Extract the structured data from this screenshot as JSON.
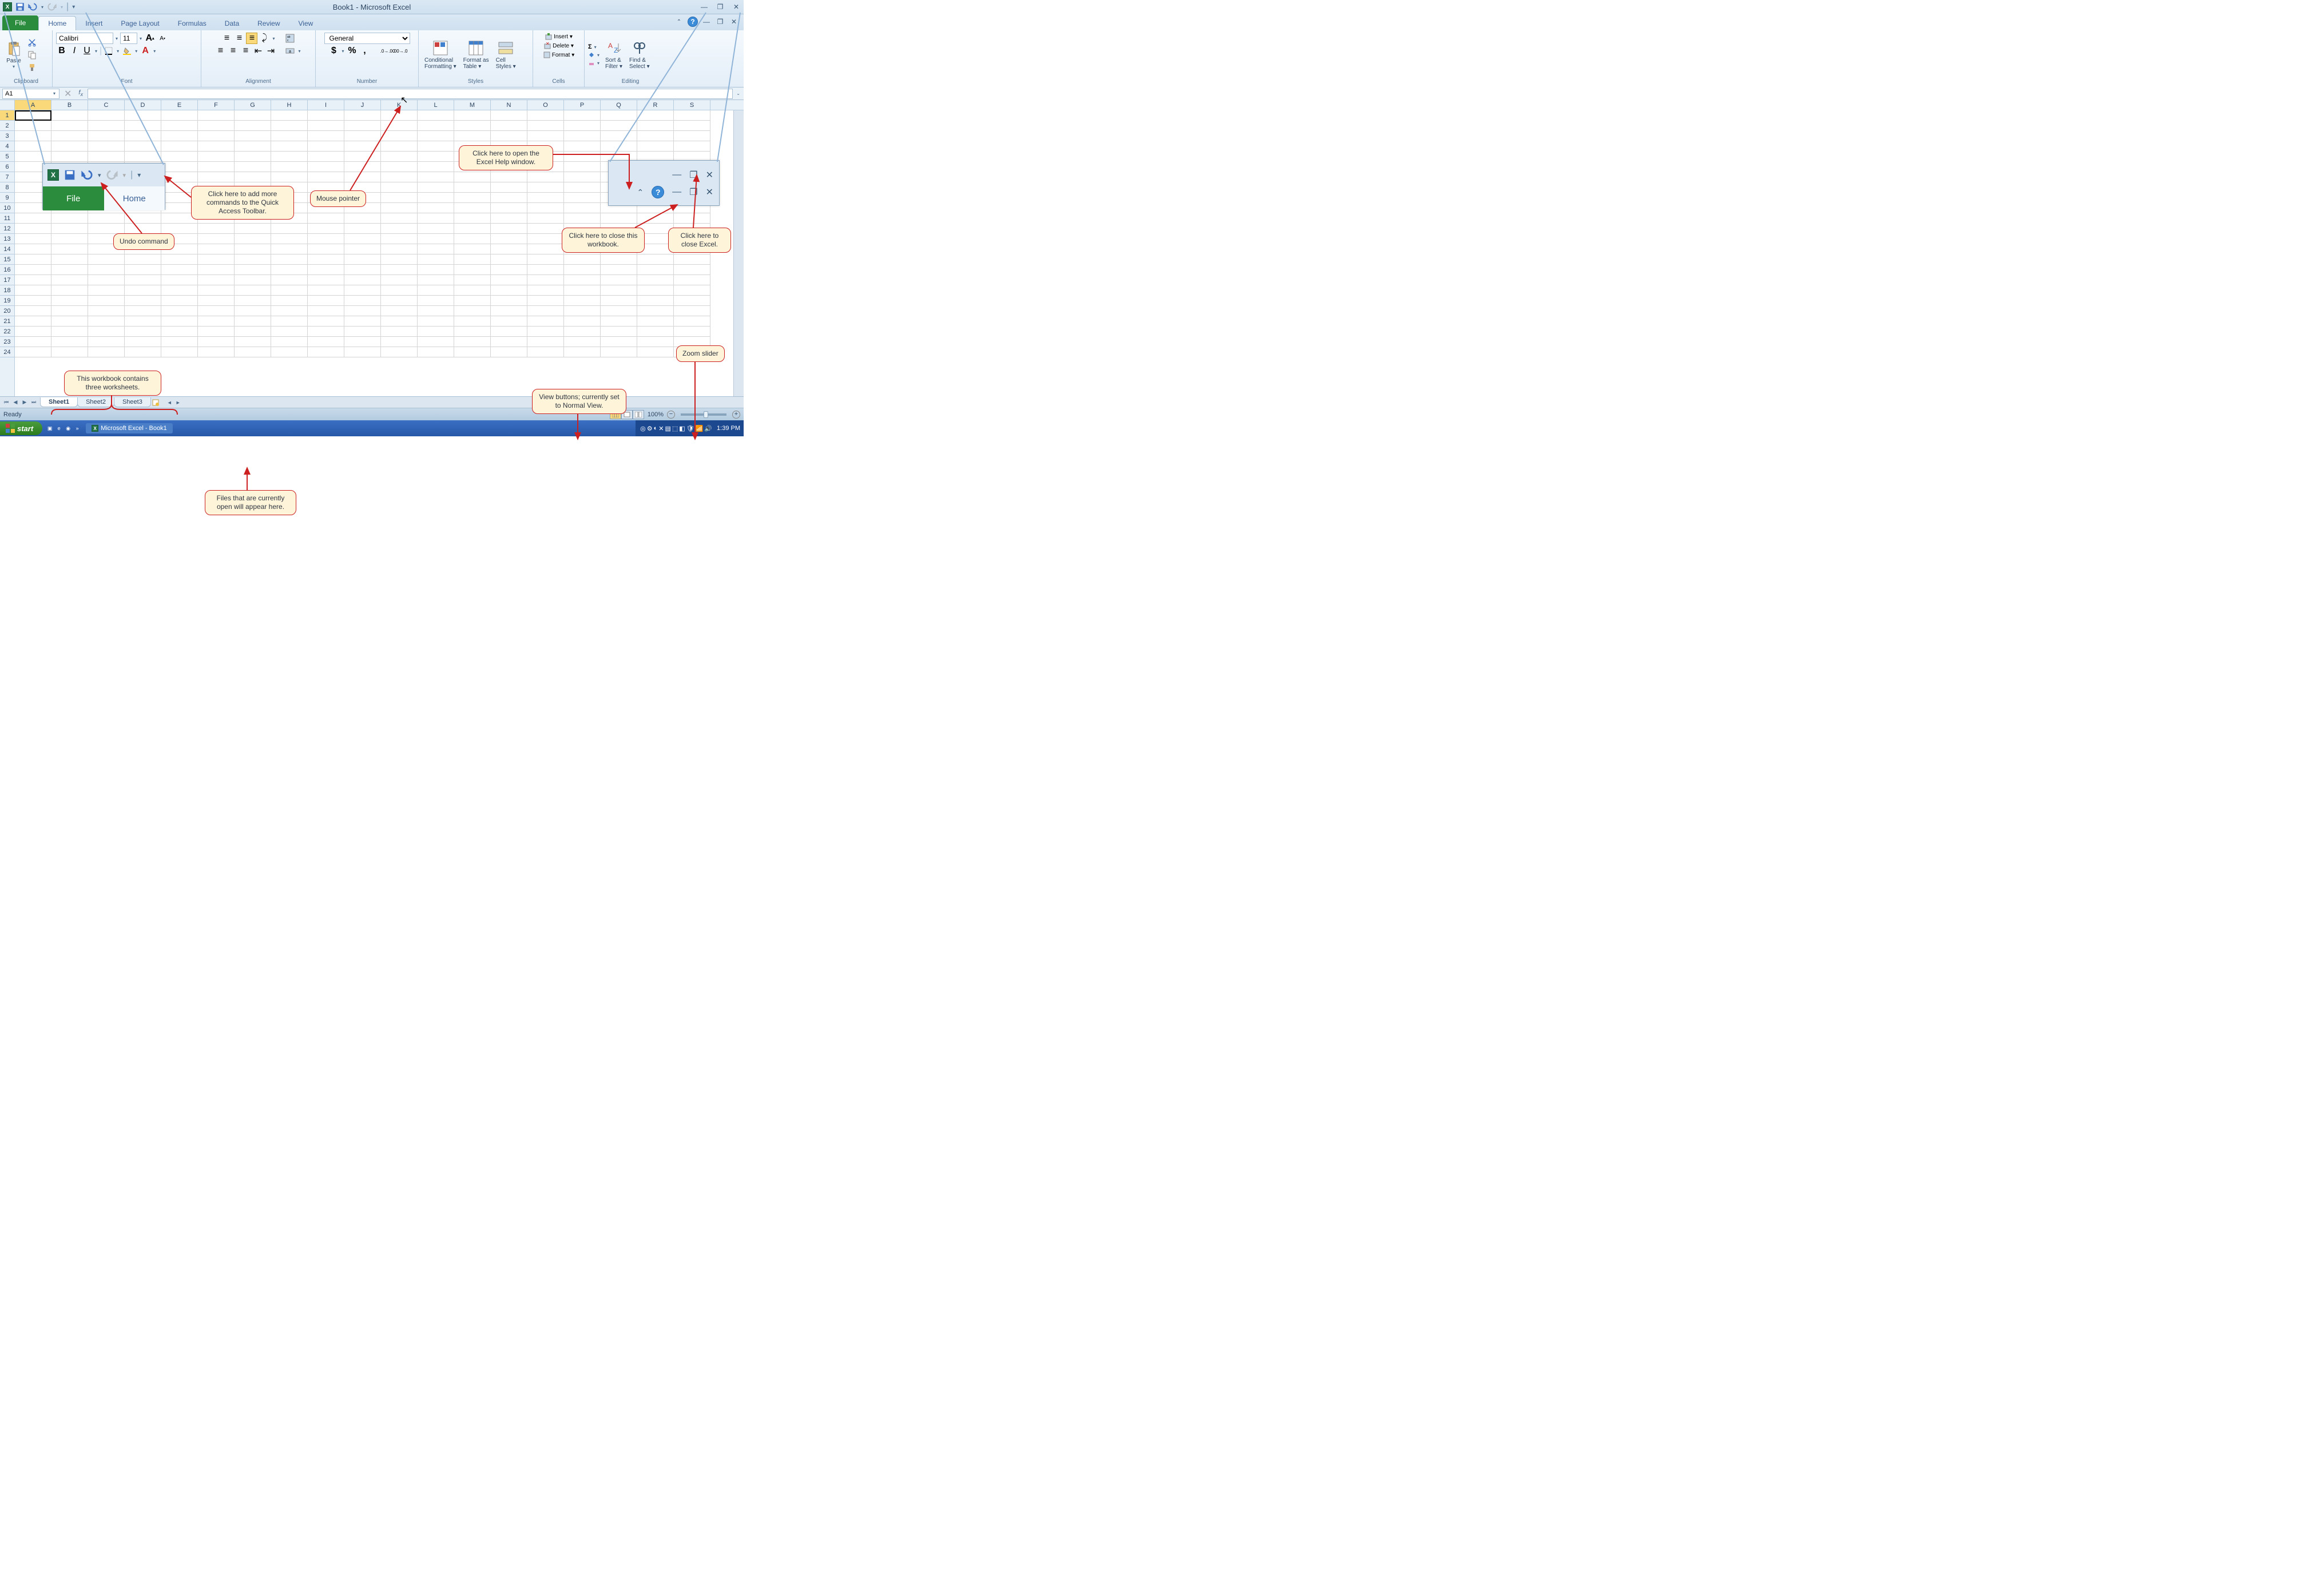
{
  "title": "Book1 - Microsoft Excel",
  "qat": {
    "undo_enabled": true,
    "redo_enabled": false
  },
  "tabs": {
    "file": "File",
    "list": [
      "Home",
      "Insert",
      "Page Layout",
      "Formulas",
      "Data",
      "Review",
      "View"
    ],
    "active": "Home"
  },
  "ribbon": {
    "clipboard": {
      "label": "Clipboard",
      "paste": "Paste"
    },
    "font": {
      "label": "Font",
      "name": "Calibri",
      "size": "11",
      "bold": "B",
      "italic": "I",
      "underline": "U"
    },
    "alignment": {
      "label": "Alignment"
    },
    "number": {
      "label": "Number",
      "format": "General"
    },
    "styles": {
      "label": "Styles",
      "conditional": "Conditional\nFormatting ▾",
      "table": "Format as\nTable ▾",
      "cell": "Cell\nStyles ▾"
    },
    "cells": {
      "label": "Cells",
      "insert": "Insert ▾",
      "delete": "Delete ▾",
      "format": "Format ▾"
    },
    "editing": {
      "label": "Editing",
      "sort": "Sort &\nFilter ▾",
      "find": "Find &\nSelect ▾"
    }
  },
  "namebox": "A1",
  "columns": [
    "A",
    "B",
    "C",
    "D",
    "E",
    "F",
    "G",
    "H",
    "I",
    "J",
    "K",
    "L",
    "M",
    "N",
    "O",
    "P",
    "Q",
    "R",
    "S"
  ],
  "rows": [
    "1",
    "2",
    "3",
    "4",
    "5",
    "6",
    "7",
    "8",
    "9",
    "10",
    "11",
    "12",
    "13",
    "14",
    "15",
    "16",
    "17",
    "18",
    "19",
    "20",
    "21",
    "22",
    "23",
    "24"
  ],
  "active_col": "A",
  "active_row": "1",
  "sheets": [
    "Sheet1",
    "Sheet2",
    "Sheet3"
  ],
  "active_sheet": "Sheet1",
  "status": {
    "ready": "Ready",
    "zoom": "100%"
  },
  "taskbar": {
    "start": "start",
    "task": "Microsoft Excel - Book1",
    "time": "1:39 PM"
  },
  "callouts": {
    "qat_more": "Click here to add more\ncommands to the Quick\nAccess Toolbar.",
    "undo": "Undo command",
    "mouse": "Mouse pointer",
    "help": "Click here to open the\nExcel Help window.",
    "close_wb": "Click here to close\nthis workbook.",
    "close_excel": "Click here to\nclose Excel.",
    "zoom": "Zoom slider",
    "views": "View buttons; currently\nset to Normal View.",
    "sheets": "This workbook contains\nthree worksheets.",
    "files_open": "Files that are currently\nopen will appear here."
  },
  "magnify_qat": {
    "file": "File",
    "home": "Home"
  },
  "colors": {
    "callout_bg": "#fef4d9",
    "callout_border": "#cc2020",
    "ribbon_bg": "#e4eef8",
    "title_bg": "#cfe0ef",
    "file_tab": "#2a8c3c",
    "active_sel": "#f9d97a"
  }
}
